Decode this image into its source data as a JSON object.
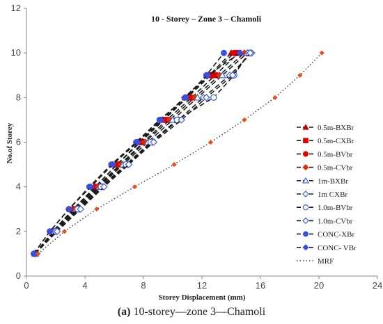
{
  "caption": {
    "label": "(a)",
    "text": " 10-storey—zone 3—Chamoli"
  },
  "chart_data": {
    "type": "line",
    "title": "10 - Storey  – Zone 3 – Chamoli",
    "xlabel": "Storey Displacement (mm)",
    "ylabel": "No.of Storey",
    "xlim": [
      0,
      24
    ],
    "ylim": [
      0,
      12
    ],
    "xticks": [
      0,
      4,
      8,
      12,
      16,
      20,
      24
    ],
    "yticks": [
      0,
      2,
      4,
      6,
      8,
      10,
      12
    ],
    "grid": false,
    "legend_position": "right",
    "y": [
      1,
      2,
      3,
      4,
      5,
      6,
      7,
      8,
      9,
      10
    ],
    "series": [
      {
        "name": "0.5m-BXBr",
        "color": "#c00000",
        "marker": "triangle-filled",
        "x": [
          0.6,
          1.8,
          3.2,
          4.7,
          6.2,
          7.7,
          9.3,
          10.9,
          12.5,
          14.0
        ]
      },
      {
        "name": "0.5m-CXBr",
        "color": "#e00000",
        "marker": "square-filled",
        "x": [
          0.6,
          1.9,
          3.3,
          4.8,
          6.4,
          8.0,
          9.6,
          11.3,
          12.9,
          14.5
        ]
      },
      {
        "name": "0.5m-BVbr",
        "color": "#e00000",
        "marker": "circle-filled",
        "x": [
          0.6,
          1.8,
          3.2,
          4.7,
          6.2,
          7.8,
          9.4,
          11.0,
          12.6,
          14.2
        ]
      },
      {
        "name": "0.5m-CVbr",
        "color": "#e03000",
        "marker": "diamond-filled",
        "x": [
          0.6,
          1.9,
          3.4,
          4.9,
          6.5,
          8.1,
          9.8,
          11.5,
          13.2,
          14.9
        ]
      },
      {
        "name": "1m-BXBr",
        "color": "#4060d0",
        "marker": "triangle-open",
        "x": [
          0.6,
          1.9,
          3.4,
          5.0,
          6.6,
          8.3,
          10.0,
          11.7,
          13.4,
          15.1
        ]
      },
      {
        "name": "1m CXBr",
        "color": "#4060d0",
        "marker": "diamond-open",
        "x": [
          0.6,
          2.0,
          3.6,
          5.2,
          6.9,
          8.6,
          10.4,
          12.1,
          13.9,
          15.4
        ]
      },
      {
        "name": "1.0m-BVbr",
        "color": "#4060d0",
        "marker": "circle-open",
        "x": [
          0.6,
          2.0,
          3.5,
          5.1,
          6.8,
          8.5,
          10.3,
          12.8,
          14.2,
          15.2
        ]
      },
      {
        "name": "1.0m-CVbr",
        "color": "#4060d0",
        "marker": "diamond-open",
        "x": [
          0.6,
          2.1,
          3.7,
          5.3,
          7.0,
          8.7,
          10.6,
          12.3,
          14.1,
          15.3
        ]
      },
      {
        "name": "CONC-XBr",
        "color": "#3a4ee0",
        "marker": "circle-filled",
        "x": [
          0.5,
          1.6,
          2.9,
          4.3,
          5.8,
          7.5,
          9.1,
          10.9,
          12.3,
          13.5
        ]
      },
      {
        "name": "CONC- VBr",
        "color": "#3a4ee0",
        "marker": "diamond-filled",
        "x": [
          0.5,
          1.6,
          2.9,
          4.4,
          5.9,
          7.6,
          9.2,
          10.8,
          12.4,
          14.6
        ]
      },
      {
        "name": "MRF",
        "color": "#e85020",
        "marker": "diamond-filled",
        "x": [
          0.8,
          2.6,
          4.8,
          7.4,
          10.1,
          12.6,
          14.9,
          17.0,
          18.7,
          20.2
        ]
      }
    ]
  }
}
